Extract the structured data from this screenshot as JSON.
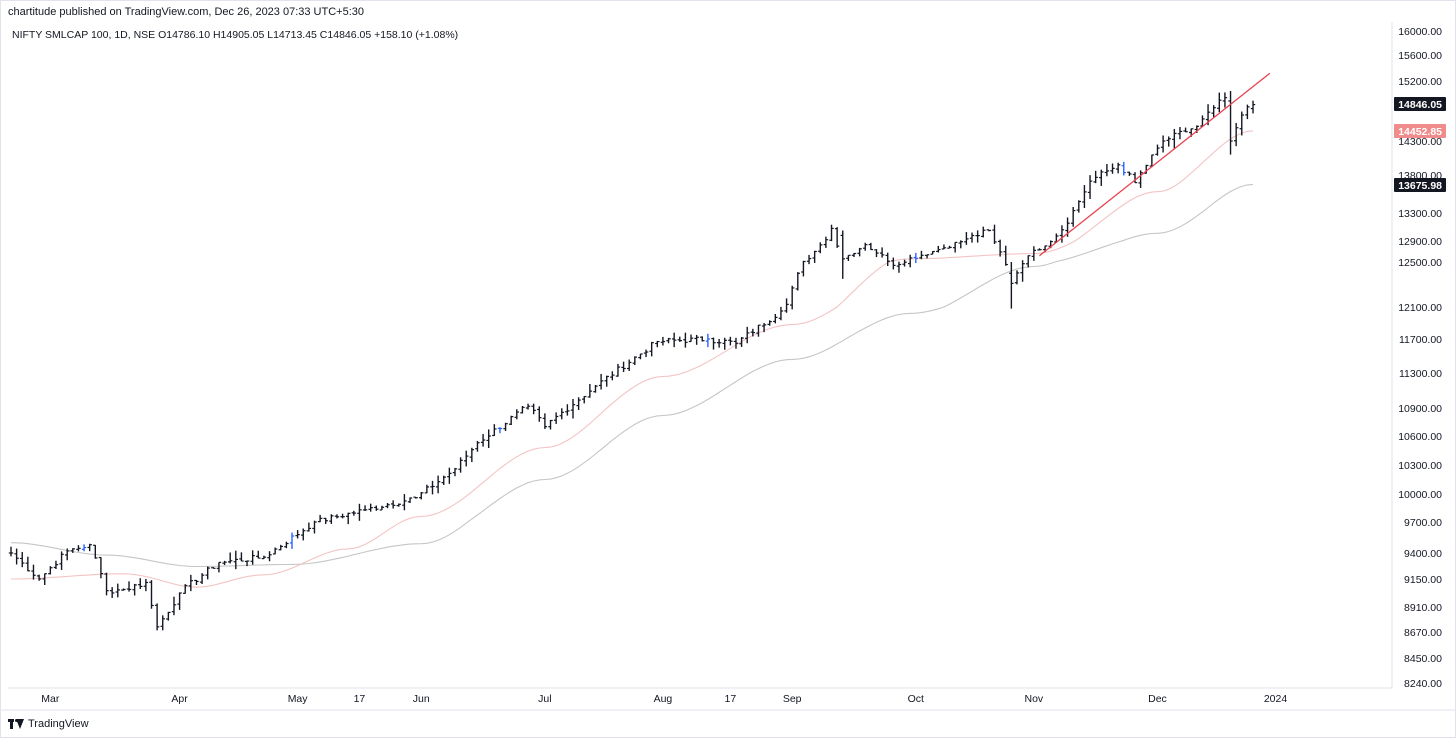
{
  "header": {
    "published": "chartitude published on TradingView.com, Dec 26, 2023 07:33 UTC+5:30",
    "legend": "NIFTY SMLCAP 100, 1D, NSE  O14786.10  H14905.05  L14713.45  C14846.05  +158.10 (+1.08%)"
  },
  "footer": {
    "brand": "TradingView",
    "logo_icon": "tradingview-logo-icon"
  },
  "colors": {
    "bars": "#131722",
    "trendline": "#e8424e",
    "ma_fast": "#f3c4c4",
    "ma_slow": "#c6c6c6",
    "last_price_bg": "#131722",
    "ma_fast_label_bg": "#f08c8c",
    "axis_text": "#131722"
  },
  "chart_data": {
    "type": "ohlc",
    "symbol": "NIFTY SMLCAP 100",
    "interval": "1D",
    "exchange": "NSE",
    "grid": false,
    "legend_position": "top-left",
    "ylim": [
      8240,
      16000
    ],
    "y_ticks": [
      "16000.00",
      "15600.00",
      "15200.00",
      "14300.00",
      "13800.00",
      "13300.00",
      "12900.00",
      "12500.00",
      "12100.00",
      "11700.00",
      "11300.00",
      "10900.00",
      "10600.00",
      "10300.00",
      "10000.00",
      "9700.00",
      "9400.00",
      "9150.00",
      "8910.00",
      "8670.00",
      "8450.00",
      "8240.00"
    ],
    "x_labels": [
      "Mar",
      "Apr",
      "May",
      "17",
      "Jun",
      "Jul",
      "Aug",
      "17",
      "Sep",
      "Oct",
      "Nov",
      "Dec",
      "2024"
    ],
    "price_labels": {
      "last_close": "14846.05",
      "ma_fast": "14452.85",
      "ma_slow": "13675.98"
    },
    "anchors": [
      {
        "date": "2023-02-20",
        "close": 9400
      },
      {
        "date": "2023-02-27",
        "close": 9150
      },
      {
        "date": "2023-03-06",
        "close": 9420
      },
      {
        "date": "2023-03-10",
        "close": 9480
      },
      {
        "date": "2023-03-15",
        "close": 9050
      },
      {
        "date": "2023-03-20",
        "close": 9060
      },
      {
        "date": "2023-03-24",
        "close": 9120
      },
      {
        "date": "2023-03-28",
        "close": 8720
      },
      {
        "date": "2023-04-03",
        "close": 9030
      },
      {
        "date": "2023-04-12",
        "close": 9310
      },
      {
        "date": "2023-04-24",
        "close": 9360
      },
      {
        "date": "2023-05-05",
        "close": 9700
      },
      {
        "date": "2023-05-18",
        "close": 9830
      },
      {
        "date": "2023-05-31",
        "close": 9960
      },
      {
        "date": "2023-06-09",
        "close": 10260
      },
      {
        "date": "2023-06-15",
        "close": 10530
      },
      {
        "date": "2023-06-28",
        "close": 10920
      },
      {
        "date": "2023-07-03",
        "close": 10700
      },
      {
        "date": "2023-07-14",
        "close": 11150
      },
      {
        "date": "2023-07-31",
        "close": 11670
      },
      {
        "date": "2023-08-11",
        "close": 11700
      },
      {
        "date": "2023-08-18",
        "close": 11650
      },
      {
        "date": "2023-08-30",
        "close": 12050
      },
      {
        "date": "2023-09-07",
        "close": 12700
      },
      {
        "date": "2023-09-12",
        "close": 13080
      },
      {
        "date": "2023-09-14",
        "close": 12560
      },
      {
        "date": "2023-09-20",
        "close": 12830
      },
      {
        "date": "2023-09-27",
        "close": 12470
      },
      {
        "date": "2023-10-06",
        "close": 12700
      },
      {
        "date": "2023-10-16",
        "close": 12930
      },
      {
        "date": "2023-10-20",
        "close": 13050
      },
      {
        "date": "2023-10-26",
        "close": 12310
      },
      {
        "date": "2023-10-31",
        "close": 12620
      },
      {
        "date": "2023-11-08",
        "close": 13060
      },
      {
        "date": "2023-11-15",
        "close": 13720
      },
      {
        "date": "2023-11-22",
        "close": 13950
      },
      {
        "date": "2023-11-27",
        "close": 13700
      },
      {
        "date": "2023-12-04",
        "close": 14300
      },
      {
        "date": "2023-12-12",
        "close": 14520
      },
      {
        "date": "2023-12-15",
        "close": 14800
      },
      {
        "date": "2023-12-19",
        "close": 14950
      },
      {
        "date": "2023-12-20",
        "close": 14300
      },
      {
        "date": "2023-12-22",
        "close": 14690
      },
      {
        "date": "2023-12-26",
        "close": 14846.05
      }
    ],
    "last_bar": {
      "date": "2023-12-26",
      "open": 14786.1,
      "high": 14905.05,
      "low": 14713.45,
      "close": 14846.05,
      "change": "+158.10 (+1.08%)"
    },
    "highlight_bars": [
      {
        "date": "2023-09-14",
        "open": 12980,
        "high": 13050,
        "low": 12350,
        "close": 12560
      },
      {
        "date": "2023-10-26",
        "open": 12400,
        "high": 12500,
        "low": 12080,
        "close": 12310
      },
      {
        "date": "2023-12-20",
        "open": 14900,
        "high": 15050,
        "low": 14100,
        "close": 14300
      }
    ],
    "ma_fast": [
      {
        "date": "2023-02-20",
        "value": 9150
      },
      {
        "date": "2023-03-20",
        "value": 9200
      },
      {
        "date": "2023-04-06",
        "value": 9080
      },
      {
        "date": "2023-04-24",
        "value": 9190
      },
      {
        "date": "2023-05-15",
        "value": 9440
      },
      {
        "date": "2023-06-01",
        "value": 9760
      },
      {
        "date": "2023-07-03",
        "value": 10480
      },
      {
        "date": "2023-08-01",
        "value": 11260
      },
      {
        "date": "2023-09-01",
        "value": 11880
      },
      {
        "date": "2023-10-02",
        "value": 12560
      },
      {
        "date": "2023-11-01",
        "value": 12660
      },
      {
        "date": "2023-12-01",
        "value": 13580
      },
      {
        "date": "2023-12-26",
        "value": 14452.85
      }
    ],
    "ma_slow": [
      {
        "date": "2023-02-20",
        "value": 9500
      },
      {
        "date": "2023-03-15",
        "value": 9380
      },
      {
        "date": "2023-04-06",
        "value": 9270
      },
      {
        "date": "2023-05-01",
        "value": 9290
      },
      {
        "date": "2023-06-01",
        "value": 9490
      },
      {
        "date": "2023-07-03",
        "value": 10150
      },
      {
        "date": "2023-08-01",
        "value": 10820
      },
      {
        "date": "2023-09-01",
        "value": 11460
      },
      {
        "date": "2023-10-02",
        "value": 12020
      },
      {
        "date": "2023-11-01",
        "value": 12460
      },
      {
        "date": "2023-12-01",
        "value": 13010
      },
      {
        "date": "2023-12-26",
        "value": 13675.98
      }
    ],
    "trendline": [
      {
        "date": "2023-11-02",
        "value": 12620
      },
      {
        "date": "2023-12-29",
        "value": 15320
      }
    ]
  }
}
